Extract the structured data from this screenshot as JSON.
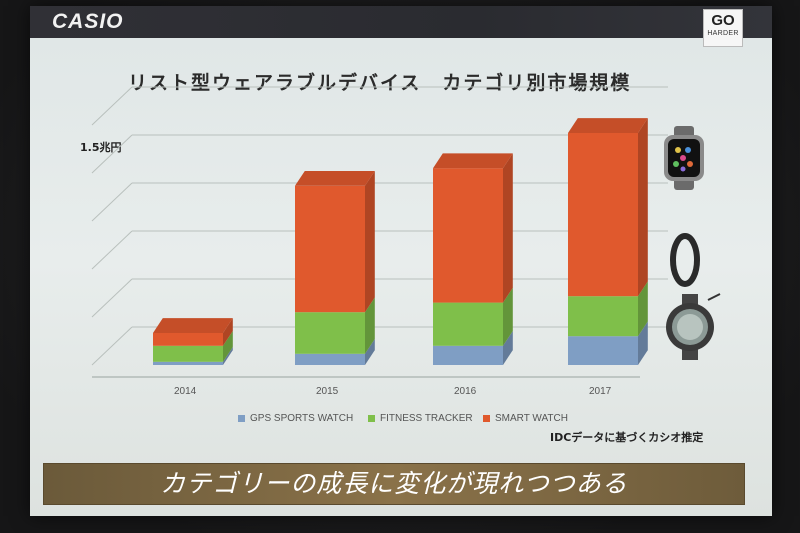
{
  "brand": {
    "logo": "CASIO",
    "badge_top": "GO",
    "badge_bottom": "HARDER"
  },
  "slide_title": "リスト型ウェアラブルデバイス　カテゴリ別市場規模",
  "unit_label": "1.5兆円",
  "note": "IDCデータに基づくカシオ推定",
  "caption": "カテゴリーの成長に変化が現れつつある",
  "colors": {
    "gps": "#7f9ec4",
    "fitness": "#7fbf4a",
    "smart": "#e0592d"
  },
  "chart_data": {
    "type": "bar",
    "stacked": true,
    "categories": [
      "2014",
      "2015",
      "2016",
      "2017"
    ],
    "series": [
      {
        "name": "GPS SPORTS WATCH",
        "values": [
          0.02,
          0.07,
          0.12,
          0.18
        ]
      },
      {
        "name": "FITNESS TRACKER",
        "values": [
          0.1,
          0.26,
          0.27,
          0.25
        ]
      },
      {
        "name": "SMART WATCH",
        "values": [
          0.08,
          0.79,
          0.84,
          1.02
        ]
      }
    ],
    "title": "リスト型ウェアラブルデバイス　カテゴリ別市場規模",
    "ylabel": "1.5兆円",
    "ylim": [
      0,
      1.6
    ],
    "grid": true,
    "legend": "bottom"
  }
}
